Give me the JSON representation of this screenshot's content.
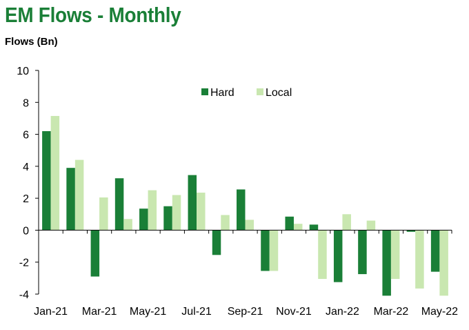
{
  "title": "EM Flows - Monthly",
  "ylabel": "Flows (Bn)",
  "chart_data": {
    "type": "bar",
    "categories": [
      "Jan-21",
      "Feb-21",
      "Mar-21",
      "Apr-21",
      "May-21",
      "Jun-21",
      "Jul-21",
      "Aug-21",
      "Sep-21",
      "Oct-21",
      "Nov-21",
      "Dec-21",
      "Jan-22",
      "Feb-22",
      "Mar-22",
      "Apr-22",
      "May-22"
    ],
    "tick_labels": [
      "Jan-21",
      "Mar-21",
      "May-21",
      "Jul-21",
      "Sep-21",
      "Nov-21",
      "Jan-22",
      "Mar-22",
      "May-22"
    ],
    "series": [
      {
        "name": "Hard",
        "color": "#1a7f37",
        "values": [
          6.2,
          3.9,
          -2.9,
          3.25,
          1.35,
          1.5,
          3.45,
          -1.55,
          2.55,
          -2.55,
          0.85,
          0.35,
          -3.25,
          -2.75,
          -4.1,
          -0.1,
          -2.6
        ]
      },
      {
        "name": "Local",
        "color": "#c9e7b0",
        "values": [
          7.15,
          4.4,
          2.05,
          0.7,
          2.5,
          2.2,
          2.35,
          0.95,
          0.65,
          -2.55,
          0.4,
          -3.05,
          1.0,
          0.6,
          -3.05,
          -3.65,
          -4.1
        ]
      }
    ],
    "yticks": [
      -4,
      -2,
      0,
      2,
      4,
      6,
      8,
      10
    ],
    "ylim": [
      -4,
      10
    ],
    "grid": false,
    "legend": "top-center"
  }
}
